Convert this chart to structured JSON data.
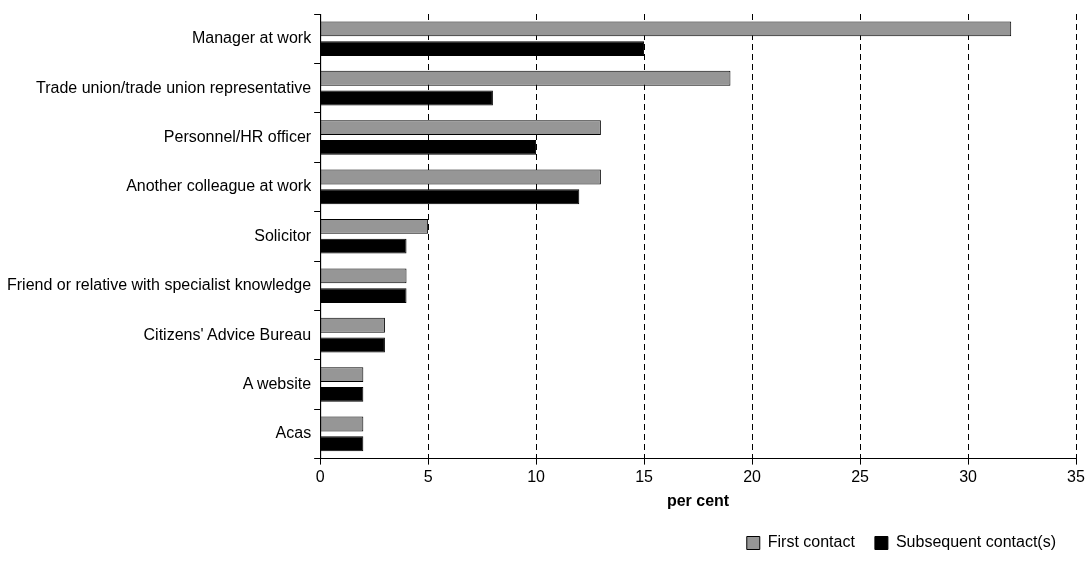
{
  "chart_data": {
    "type": "bar",
    "orientation": "horizontal",
    "xlabel": "per cent",
    "categories": [
      "Manager at work",
      "Trade union/trade union representative",
      "Personnel/HR officer",
      "Another colleague at work",
      "Solicitor",
      "Friend or relative with specialist knowledge",
      "Citizens' Advice Bureau",
      "A website",
      "Acas"
    ],
    "series": [
      {
        "name": "First contact",
        "color": "#969696",
        "values": [
          32,
          19,
          13,
          13,
          5,
          4,
          3,
          2,
          2
        ]
      },
      {
        "name": "Subsequent contact(s)",
        "color": "#000000",
        "values": [
          15,
          8,
          10,
          12,
          4,
          4,
          3,
          2,
          2
        ]
      }
    ],
    "xlim": [
      0,
      35
    ],
    "xticks": [
      0,
      5,
      10,
      15,
      20,
      25,
      30,
      35
    ],
    "grid": "x",
    "legend": "bottom"
  }
}
